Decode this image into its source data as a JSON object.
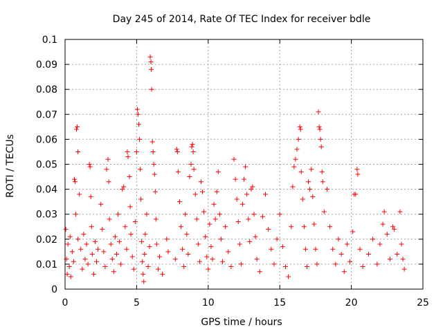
{
  "chart_data": {
    "type": "scatter",
    "title": "Day 245 of 2014, Rate Of TEC Index for receiver bdle",
    "xlabel": "GPS time / hours",
    "ylabel": "ROTI / TECUs",
    "xlim": [
      0,
      25
    ],
    "ylim": [
      0,
      0.1
    ],
    "x_ticks": [
      "0",
      "5",
      "10",
      "15",
      "20",
      "25"
    ],
    "y_ticks": [
      "0",
      "0.01",
      "0.02",
      "0.03",
      "0.04",
      "0.05",
      "0.06",
      "0.07",
      "0.08",
      "0.09",
      "0.1"
    ],
    "x_tick_values": [
      0,
      5,
      10,
      15,
      20,
      25
    ],
    "y_tick_values": [
      0,
      0.01,
      0.02,
      0.03,
      0.04,
      0.05,
      0.06,
      0.07,
      0.08,
      0.09,
      0.1
    ],
    "grid": true,
    "marker": "+",
    "series_color": "#ff0000",
    "series": [
      {
        "points": [
          [
            0.05,
            0.024
          ],
          [
            0.1,
            0.012
          ],
          [
            0.15,
            0.006
          ],
          [
            0.2,
            0.018
          ],
          [
            0.3,
            0.009
          ],
          [
            0.35,
            0.021
          ],
          [
            0.4,
            0.005
          ],
          [
            0.5,
            0.015
          ],
          [
            0.6,
            0.011
          ],
          [
            0.65,
            0.044
          ],
          [
            0.7,
            0.043
          ],
          [
            0.75,
            0.03
          ],
          [
            0.8,
            0.064
          ],
          [
            0.85,
            0.065
          ],
          [
            0.9,
            0.055
          ],
          [
            0.9,
            0.02
          ],
          [
            1.0,
            0.038
          ],
          [
            1.1,
            0.016
          ],
          [
            1.2,
            0.008
          ],
          [
            1.3,
            0.022
          ],
          [
            1.4,
            0.012
          ],
          [
            1.5,
            0.018
          ],
          [
            1.6,
            0.01
          ],
          [
            1.7,
            0.05
          ],
          [
            1.75,
            0.049
          ],
          [
            1.8,
            0.037
          ],
          [
            1.85,
            0.025
          ],
          [
            1.9,
            0.014
          ],
          [
            2.0,
            0.006
          ],
          [
            2.1,
            0.019
          ],
          [
            2.2,
            0.011
          ],
          [
            2.3,
            0.016
          ],
          [
            2.5,
            0.034
          ],
          [
            2.6,
            0.024
          ],
          [
            2.7,
            0.015
          ],
          [
            2.8,
            0.009
          ],
          [
            2.9,
            0.048
          ],
          [
            3.0,
            0.052
          ],
          [
            3.05,
            0.043
          ],
          [
            3.1,
            0.028
          ],
          [
            3.2,
            0.018
          ],
          [
            3.3,
            0.012
          ],
          [
            3.4,
            0.007
          ],
          [
            3.5,
            0.021
          ],
          [
            3.6,
            0.014
          ],
          [
            3.7,
            0.03
          ],
          [
            3.8,
            0.019
          ],
          [
            3.9,
            0.01
          ],
          [
            4.0,
            0.04
          ],
          [
            4.1,
            0.041
          ],
          [
            4.2,
            0.025
          ],
          [
            4.3,
            0.016
          ],
          [
            4.35,
            0.055
          ],
          [
            4.4,
            0.053
          ],
          [
            4.5,
            0.045
          ],
          [
            4.55,
            0.033
          ],
          [
            4.6,
            0.022
          ],
          [
            4.7,
            0.013
          ],
          [
            4.8,
            0.008
          ],
          [
            4.9,
            0.027
          ],
          [
            5.0,
            0.055
          ],
          [
            5.05,
            0.072
          ],
          [
            5.1,
            0.07
          ],
          [
            5.15,
            0.066
          ],
          [
            5.2,
            0.06
          ],
          [
            5.25,
            0.048
          ],
          [
            5.3,
            0.036
          ],
          [
            5.35,
            0.019
          ],
          [
            5.4,
            0.011
          ],
          [
            5.45,
            0.006
          ],
          [
            5.5,
            0.003
          ],
          [
            5.55,
            0.014
          ],
          [
            5.6,
            0.022
          ],
          [
            5.7,
            0.03
          ],
          [
            5.8,
            0.009
          ],
          [
            5.9,
            0.017
          ],
          [
            5.95,
            0.093
          ],
          [
            6.0,
            0.091
          ],
          [
            6.02,
            0.088
          ],
          [
            6.05,
            0.08
          ],
          [
            6.1,
            0.059
          ],
          [
            6.15,
            0.055
          ],
          [
            6.2,
            0.05
          ],
          [
            6.25,
            0.046
          ],
          [
            6.3,
            0.039
          ],
          [
            6.35,
            0.028
          ],
          [
            6.4,
            0.018
          ],
          [
            6.5,
            0.008
          ],
          [
            6.6,
            0.013
          ],
          [
            6.8,
            0.006
          ],
          [
            7.1,
            0.02
          ],
          [
            7.2,
            0.015
          ],
          [
            7.7,
            0.012
          ],
          [
            7.8,
            0.056
          ],
          [
            7.85,
            0.055
          ],
          [
            7.9,
            0.047
          ],
          [
            8.0,
            0.035
          ],
          [
            8.1,
            0.025
          ],
          [
            8.2,
            0.016
          ],
          [
            8.3,
            0.009
          ],
          [
            8.4,
            0.03
          ],
          [
            8.5,
            0.022
          ],
          [
            8.6,
            0.014
          ],
          [
            8.7,
            0.045
          ],
          [
            8.8,
            0.05
          ],
          [
            8.85,
            0.057
          ],
          [
            8.9,
            0.058
          ],
          [
            8.95,
            0.055
          ],
          [
            9.0,
            0.048
          ],
          [
            9.1,
            0.038
          ],
          [
            9.2,
            0.028
          ],
          [
            9.3,
            0.018
          ],
          [
            9.4,
            0.011
          ],
          [
            9.5,
            0.043
          ],
          [
            9.6,
            0.039
          ],
          [
            9.7,
            0.031
          ],
          [
            9.8,
            0.021
          ],
          [
            9.9,
            0.013
          ],
          [
            10.0,
            0.008
          ],
          [
            10.1,
            0.026
          ],
          [
            10.2,
            0.017
          ],
          [
            10.3,
            0.012
          ],
          [
            10.4,
            0.034
          ],
          [
            10.5,
            0.028
          ],
          [
            10.6,
            0.039
          ],
          [
            10.7,
            0.047
          ],
          [
            10.8,
            0.03
          ],
          [
            10.9,
            0.02
          ],
          [
            11.0,
            0.011
          ],
          [
            11.2,
            0.025
          ],
          [
            11.4,
            0.015
          ],
          [
            11.6,
            0.009
          ],
          [
            11.8,
            0.052
          ],
          [
            11.9,
            0.044
          ],
          [
            12.0,
            0.036
          ],
          [
            12.1,
            0.027
          ],
          [
            12.2,
            0.018
          ],
          [
            12.3,
            0.01
          ],
          [
            12.4,
            0.034
          ],
          [
            12.5,
            0.044
          ],
          [
            12.6,
            0.049
          ],
          [
            12.7,
            0.038
          ],
          [
            12.8,
            0.028
          ],
          [
            12.9,
            0.019
          ],
          [
            13.0,
            0.04
          ],
          [
            13.1,
            0.041
          ],
          [
            13.2,
            0.03
          ],
          [
            13.3,
            0.021
          ],
          [
            13.4,
            0.012
          ],
          [
            13.6,
            0.007
          ],
          [
            13.8,
            0.029
          ],
          [
            14.0,
            0.038
          ],
          [
            14.2,
            0.024
          ],
          [
            14.4,
            0.016
          ],
          [
            14.6,
            0.01
          ],
          [
            14.8,
            0.02
          ],
          [
            15.0,
            0.03
          ],
          [
            15.2,
            0.017
          ],
          [
            15.4,
            0.009
          ],
          [
            15.6,
            0.005
          ],
          [
            15.8,
            0.025
          ],
          [
            15.9,
            0.041
          ],
          [
            16.0,
            0.049
          ],
          [
            16.1,
            0.052
          ],
          [
            16.2,
            0.056
          ],
          [
            16.3,
            0.06
          ],
          [
            16.4,
            0.065
          ],
          [
            16.45,
            0.064
          ],
          [
            16.5,
            0.047
          ],
          [
            16.6,
            0.036
          ],
          [
            16.7,
            0.025
          ],
          [
            16.8,
            0.016
          ],
          [
            16.9,
            0.009
          ],
          [
            17.0,
            0.043
          ],
          [
            17.1,
            0.04
          ],
          [
            17.2,
            0.048
          ],
          [
            17.3,
            0.037
          ],
          [
            17.4,
            0.026
          ],
          [
            17.5,
            0.016
          ],
          [
            17.6,
            0.01
          ],
          [
            17.7,
            0.071
          ],
          [
            17.75,
            0.065
          ],
          [
            17.8,
            0.064
          ],
          [
            17.85,
            0.06
          ],
          [
            17.9,
            0.057
          ],
          [
            17.95,
            0.047
          ],
          [
            18.0,
            0.043
          ],
          [
            18.1,
            0.031
          ],
          [
            18.3,
            0.04
          ],
          [
            18.5,
            0.025
          ],
          [
            18.7,
            0.016
          ],
          [
            18.9,
            0.01
          ],
          [
            19.1,
            0.02
          ],
          [
            19.3,
            0.014
          ],
          [
            19.5,
            0.007
          ],
          [
            19.7,
            0.018
          ],
          [
            19.9,
            0.011
          ],
          [
            20.1,
            0.023
          ],
          [
            20.2,
            0.038
          ],
          [
            20.3,
            0.038
          ],
          [
            20.4,
            0.048
          ],
          [
            20.45,
            0.046
          ],
          [
            20.6,
            0.016
          ],
          [
            20.8,
            0.009
          ],
          [
            21.2,
            0.014
          ],
          [
            21.5,
            0.02
          ],
          [
            21.8,
            0.01
          ],
          [
            22.0,
            0.018
          ],
          [
            22.2,
            0.026
          ],
          [
            22.3,
            0.031
          ],
          [
            22.5,
            0.022
          ],
          [
            22.7,
            0.012
          ],
          [
            22.9,
            0.025
          ],
          [
            23.0,
            0.024
          ],
          [
            23.2,
            0.014
          ],
          [
            23.4,
            0.031
          ],
          [
            23.5,
            0.018
          ],
          [
            23.6,
            0.012
          ],
          [
            23.7,
            0.008
          ]
        ]
      }
    ]
  }
}
